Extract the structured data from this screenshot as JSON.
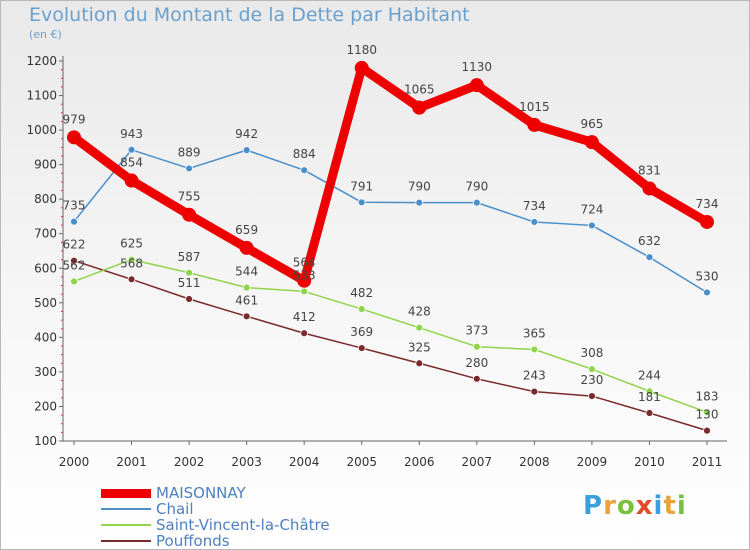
{
  "chart_data": {
    "type": "line",
    "title": "Evolution du Montant de la Dette par Habitant",
    "subtitle": "(en €)",
    "x": [
      "2000",
      "2001",
      "2002",
      "2003",
      "2004",
      "2005",
      "2006",
      "2007",
      "2008",
      "2009",
      "2010",
      "2011"
    ],
    "ylim": [
      100,
      1200
    ],
    "yticks": [
      100,
      200,
      300,
      400,
      500,
      600,
      700,
      800,
      900,
      1000,
      1100,
      1200
    ],
    "grid": false,
    "legend_position": "bottom-left",
    "series": [
      {
        "name": "MAISONNAY",
        "color": "#ee0000",
        "values": [
          979,
          854,
          755,
          659,
          564,
          1180,
          1065,
          1130,
          1015,
          965,
          831,
          734
        ]
      },
      {
        "name": "Chail",
        "color": "#4a8fc9",
        "values": [
          735,
          943,
          889,
          942,
          884,
          791,
          790,
          790,
          734,
          724,
          632,
          530
        ]
      },
      {
        "name": "Saint-Vincent-la-Châtre",
        "color": "#8fd44a",
        "values": [
          562,
          625,
          587,
          544,
          533,
          482,
          428,
          373,
          365,
          308,
          244,
          183
        ]
      },
      {
        "name": "Pouffonds",
        "color": "#7a2a2a",
        "values": [
          622,
          568,
          511,
          461,
          412,
          369,
          325,
          280,
          243,
          230,
          181,
          130
        ]
      }
    ]
  },
  "branding": {
    "logo_letters": [
      "P",
      "r",
      "o",
      "x",
      "i",
      "t",
      "i"
    ],
    "logo_colors": [
      "#3aa0dc",
      "#e8a33d",
      "#7bbf3f",
      "#e04b2a",
      "#3aa0dc",
      "#e8a33d",
      "#7bbf3f"
    ]
  }
}
